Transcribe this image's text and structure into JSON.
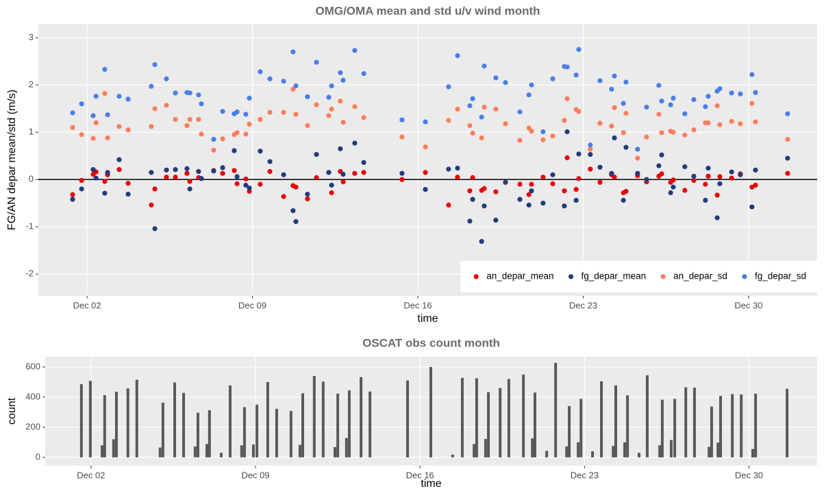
{
  "chart_data": [
    {
      "type": "scatter",
      "title": "OMG/OMA mean and std u/v wind month",
      "x_label": "time",
      "y_label": "FG/AN depar mean/std (m/s)",
      "x": [
        1.39,
        1.77,
        2.26,
        2.38,
        2.75,
        2.87,
        3.36,
        3.74,
        4.72,
        4.87,
        5.36,
        5.74,
        6.23,
        6.35,
        6.72,
        6.84,
        7.36,
        7.74,
        8.23,
        8.35,
        8.72,
        8.87,
        9.33,
        9.74,
        10.32,
        10.72,
        10.84,
        11.33,
        11.71,
        12.23,
        12.35,
        12.72,
        12.84,
        13.33,
        13.71,
        15.33,
        16.32,
        17.3,
        17.68,
        18.2,
        18.32,
        18.7,
        18.81,
        19.3,
        19.71,
        20.32,
        20.7,
        20.81,
        21.3,
        21.71,
        22.2,
        22.32,
        22.7,
        22.81,
        23.3,
        23.71,
        24.2,
        24.32,
        24.7,
        24.81,
        25.3,
        25.68,
        26.2,
        26.32,
        26.7,
        26.81,
        27.3,
        27.68,
        28.17,
        28.29,
        28.67,
        28.78,
        29.28,
        29.65,
        30.14,
        30.29,
        31.65
      ],
      "series": [
        {
          "name": "an_depar_mean",
          "color": "#e8000b",
          "values": [
            -0.32,
            -0.02,
            0.11,
            0.16,
            -0.04,
            0.1,
            0.21,
            -0.08,
            -0.54,
            -0.2,
            0.05,
            0.05,
            0.13,
            -0.04,
            0.04,
            0.02,
            0.19,
            0.13,
            0.19,
            -0.09,
            0.01,
            -0.25,
            -0.1,
            0.17,
            -0.36,
            -0.13,
            -0.16,
            -0.41,
            0.04,
            0.15,
            -0.28,
            0.17,
            -0.05,
            0.13,
            0.15,
            0.0,
            0.15,
            -0.54,
            0.05,
            -0.24,
            0.04,
            -0.23,
            -0.19,
            -0.26,
            -0.06,
            -0.1,
            -0.32,
            -0.1,
            0.05,
            -0.09,
            -0.24,
            0.46,
            -0.21,
            0.02,
            0.22,
            -0.06,
            0.1,
            0.05,
            -0.28,
            -0.25,
            0.08,
            -0.05,
            0.07,
            0.12,
            -0.06,
            -0.01,
            -0.23,
            -0.02,
            -0.1,
            0.07,
            -0.33,
            0.06,
            0.03,
            0.12,
            -0.16,
            -0.12,
            0.13
          ]
        },
        {
          "name": "fg_depar_mean",
          "color": "#233b7d",
          "values": [
            -0.42,
            -0.2,
            0.21,
            0.03,
            -0.29,
            0.15,
            0.42,
            -0.31,
            0.15,
            -1.04,
            0.2,
            0.21,
            0.23,
            -0.2,
            0.17,
            0.02,
            0.18,
            0.25,
            0.61,
            0.06,
            -0.12,
            -0.18,
            0.6,
            0.38,
            0.1,
            -0.66,
            -0.89,
            -0.31,
            0.53,
            0.15,
            -0.12,
            0.65,
            0.11,
            0.77,
            0.36,
            0.13,
            -0.21,
            0.22,
            0.24,
            -0.88,
            -0.42,
            -1.31,
            -0.56,
            -0.86,
            -0.06,
            -0.42,
            -0.54,
            -0.24,
            -0.5,
            0.1,
            -0.56,
            1.01,
            -0.44,
            0.54,
            0.53,
            0.26,
            0.13,
            0.88,
            -0.44,
            0.68,
            0.13,
            0.0,
            0.29,
            0.52,
            -0.28,
            -0.16,
            0.27,
            0.07,
            -0.44,
            0.24,
            -0.81,
            -0.09,
            0.16,
            0.1,
            -0.58,
            0.2,
            0.45
          ]
        },
        {
          "name": "an_depar_sd",
          "color": "#fb7d5b",
          "values": [
            1.1,
            0.95,
            0.87,
            1.2,
            1.82,
            0.88,
            1.12,
            1.05,
            1.12,
            1.5,
            1.57,
            1.27,
            1.14,
            1.27,
            1.27,
            0.96,
            0.62,
            0.86,
            0.95,
            0.99,
            0.96,
            1.17,
            1.27,
            1.42,
            1.42,
            1.91,
            1.38,
            1.14,
            1.58,
            1.35,
            1.49,
            1.66,
            1.21,
            1.54,
            1.31,
            0.9,
            0.69,
            1.25,
            1.49,
            1.14,
            0.98,
            0.88,
            1.53,
            1.49,
            1.18,
            0.83,
            1.09,
            1.02,
            0.84,
            0.92,
            1.25,
            1.71,
            1.48,
            1.44,
            0.64,
            1.19,
            1.13,
            1.52,
            0.99,
            1.4,
            0.45,
            0.9,
            1.38,
            0.99,
            1.02,
            1.0,
            0.94,
            1.05,
            1.2,
            1.2,
            1.56,
            1.16,
            1.23,
            1.18,
            1.61,
            1.22,
            0.85
          ]
        },
        {
          "name": "fg_depar_sd",
          "color": "#4a7ee8",
          "values": [
            1.41,
            1.6,
            1.35,
            1.76,
            2.33,
            1.37,
            1.76,
            1.7,
            1.97,
            2.43,
            2.13,
            1.83,
            1.84,
            1.83,
            1.79,
            1.6,
            0.85,
            1.44,
            1.39,
            1.43,
            1.38,
            1.72,
            2.28,
            2.13,
            2.08,
            2.7,
            1.98,
            1.75,
            2.48,
            1.74,
            1.98,
            2.26,
            2.1,
            2.73,
            2.24,
            1.26,
            1.22,
            1.96,
            2.62,
            1.56,
            1.71,
            1.32,
            2.4,
            2.15,
            2.05,
            1.43,
            1.79,
            2.0,
            1.01,
            2.13,
            2.39,
            2.38,
            2.21,
            2.75,
            0.73,
            2.09,
            1.91,
            2.19,
            1.61,
            2.06,
            0.64,
            1.53,
            1.99,
            1.66,
            1.58,
            1.72,
            1.39,
            1.69,
            1.54,
            1.76,
            1.87,
            1.92,
            1.83,
            1.81,
            2.22,
            1.84,
            1.39
          ]
        }
      ],
      "xlim": [
        -0.06,
        32.9
      ],
      "ylim": [
        -2.46,
        3.29
      ],
      "xticks": [
        {
          "value": 2,
          "label": "Dec 02"
        },
        {
          "value": 9,
          "label": "Dec 09"
        },
        {
          "value": 16,
          "label": "Dec 16"
        },
        {
          "value": 23,
          "label": "Dec 23"
        },
        {
          "value": 30,
          "label": "Dec 30"
        }
      ],
      "yticks": [
        -2,
        -1,
        0,
        1,
        2,
        3
      ],
      "hline": 0,
      "grid": true,
      "legend": "bottom-right"
    },
    {
      "type": "bar",
      "title": "OSCAT obs count month",
      "x_label": "time",
      "y_label": "count",
      "color": "#595959",
      "x": [
        1.59,
        1.97,
        2.47,
        2.58,
        2.96,
        3.08,
        3.57,
        3.95,
        4.94,
        5.06,
        5.56,
        5.94,
        6.43,
        6.55,
        6.93,
        7.04,
        7.54,
        7.92,
        8.41,
        8.53,
        8.91,
        9.06,
        9.52,
        9.9,
        10.51,
        10.89,
        11.01,
        11.5,
        11.88,
        12.38,
        12.5,
        12.87,
        12.99,
        13.49,
        13.87,
        15.47,
        16.46,
        17.39,
        17.8,
        18.3,
        18.41,
        18.79,
        18.91,
        19.41,
        19.78,
        20.4,
        20.78,
        20.89,
        21.39,
        21.77,
        22.24,
        22.35,
        22.73,
        22.85,
        23.34,
        23.72,
        24.22,
        24.33,
        24.71,
        24.83,
        25.32,
        25.67,
        26.2,
        26.31,
        26.69,
        26.84,
        27.31,
        27.68,
        28.3,
        28.41,
        28.68,
        28.79,
        29.29,
        29.67,
        30.16,
        30.28,
        31.62
      ],
      "values": [
        486,
        508,
        80,
        413,
        120,
        436,
        458,
        515,
        65,
        363,
        497,
        428,
        72,
        296,
        88,
        313,
        30,
        478,
        80,
        333,
        85,
        350,
        500,
        322,
        308,
        83,
        425,
        540,
        503,
        68,
        423,
        128,
        445,
        533,
        437,
        510,
        600,
        18,
        528,
        88,
        525,
        122,
        433,
        460,
        520,
        550,
        125,
        430,
        43,
        627,
        72,
        340,
        100,
        388,
        40,
        505,
        75,
        478,
        100,
        412,
        30,
        545,
        80,
        383,
        115,
        388,
        465,
        463,
        70,
        337,
        98,
        408,
        420,
        418,
        55,
        423,
        455
      ],
      "xlim": [
        0.05,
        32.9
      ],
      "ylim": [
        -55,
        668
      ],
      "xticks": [
        {
          "value": 2,
          "label": "Dec 02"
        },
        {
          "value": 9,
          "label": "Dec 09"
        },
        {
          "value": 16,
          "label": "Dec 16"
        },
        {
          "value": 23,
          "label": "Dec 23"
        },
        {
          "value": 30,
          "label": "Dec 30"
        }
      ],
      "yticks": [
        0,
        200,
        400,
        600
      ],
      "grid": true
    }
  ]
}
